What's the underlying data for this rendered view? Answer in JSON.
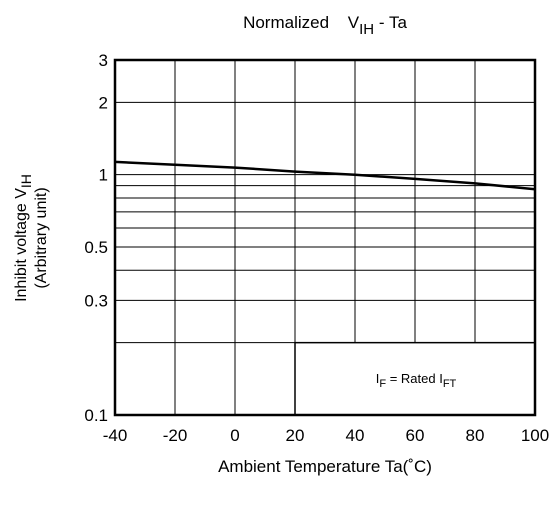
{
  "chart_data": {
    "type": "line",
    "title": {
      "main": "Normalized",
      "v": "V",
      "sub": "IH",
      "tail": " - Ta"
    },
    "xlabel": "Ambient Temperature Ta(˚C)",
    "ylabel": {
      "line1_prefix": "Inhibit voltage V",
      "line1_sub": "IH",
      "line2": "(Arbitrary unit)"
    },
    "x_scale": "linear",
    "y_scale": "log",
    "xlim": [
      -40,
      100
    ],
    "ylim": [
      0.1,
      3
    ],
    "x_ticks": [
      -40,
      -20,
      0,
      20,
      40,
      60,
      80,
      100
    ],
    "x_tick_labels": [
      "-40",
      "-20",
      "0",
      "20",
      "40",
      "60",
      "80",
      "100"
    ],
    "y_ticks": [
      0.1,
      0.3,
      0.5,
      1,
      2,
      3
    ],
    "y_tick_labels": [
      "0.1",
      "0.3",
      "0.5",
      "1",
      "2",
      "3"
    ],
    "y_gridlines": [
      0.2,
      0.3,
      0.4,
      0.5,
      0.6,
      0.7,
      0.8,
      0.9,
      1,
      2
    ],
    "grid": true,
    "series": [
      {
        "x": [
          -40,
          -20,
          0,
          20,
          40,
          60,
          80,
          100
        ],
        "y": [
          1.13,
          1.1,
          1.07,
          1.03,
          1.0,
          0.96,
          0.92,
          0.87
        ]
      }
    ],
    "annotation": {
      "prefix": "I",
      "sub1": "F",
      "mid": " = Rated I",
      "sub2": "FT"
    }
  }
}
